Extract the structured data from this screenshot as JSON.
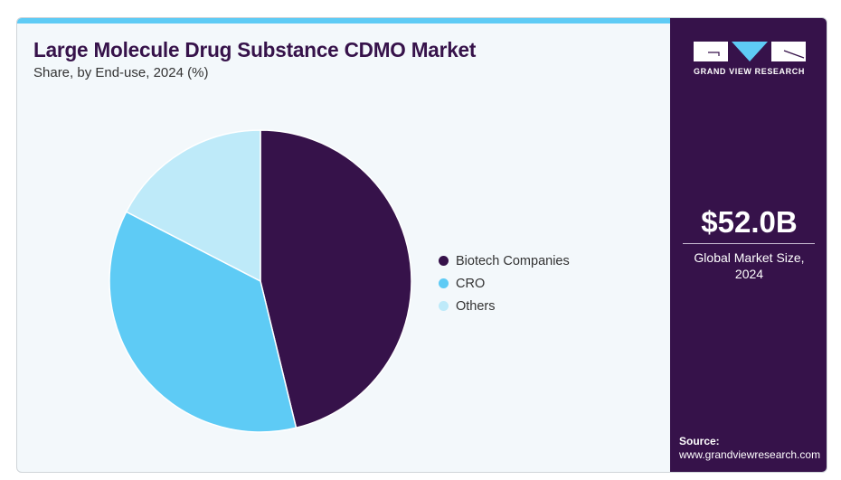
{
  "header": {
    "title": "Large Molecule Drug Substance CDMO Market",
    "subtitle": "Share, by End-use, 2024 (%)"
  },
  "sidebar": {
    "brand": "GRAND VIEW RESEARCH",
    "market_value": "$52.0B",
    "market_label": "Global Market Size, 2024",
    "source_label": "Source:",
    "source_url": "www.grandviewresearch.com"
  },
  "colors": {
    "accent_bar": "#5ecbf5",
    "sidebar_bg": "#36124a",
    "card_bg": "#f3f8fb"
  },
  "chart_data": {
    "type": "pie",
    "title": "Large Molecule Drug Substance CDMO Market",
    "subtitle": "Share, by End-use, 2024 (%)",
    "legend_position": "right",
    "slices": [
      {
        "label": "Biotech Companies",
        "value": 46.2,
        "color": "#36124a"
      },
      {
        "label": "CRO",
        "value": 36.4,
        "color": "#5ecbf5"
      },
      {
        "label": "Others",
        "value": 17.4,
        "color": "#beeaf9"
      }
    ]
  }
}
